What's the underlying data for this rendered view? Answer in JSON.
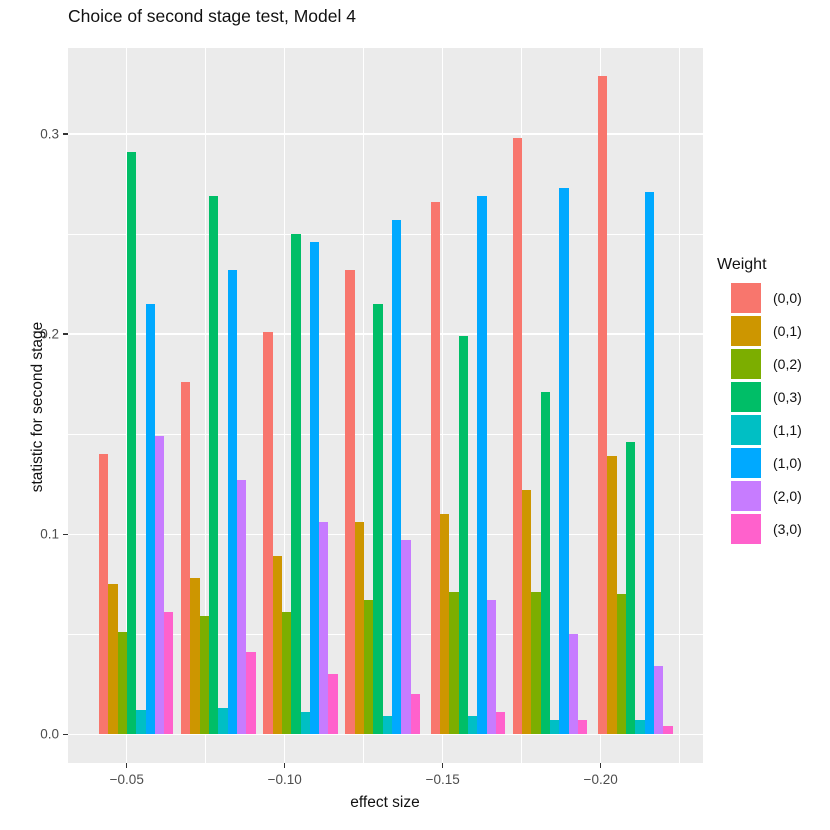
{
  "title": "Choice of second stage test, Model 4",
  "chart_data": {
    "type": "bar",
    "title": "Choice of second stage test, Model 4",
    "xlabel": "effect size",
    "ylabel": "statistic for second stage",
    "legend_title": "Weight",
    "legend_position": "right",
    "grid": "major-and-minor-white-on-gray",
    "panel_bg": "#EBEBEB",
    "grid_color": "#FFFFFF",
    "tick_label_color": "#4D4D4D",
    "xlim": [
      -0.0314,
      -0.2324
    ],
    "ylim": [
      -0.0143,
      0.343
    ],
    "x_ticks": [
      -0.05,
      -0.1,
      -0.15,
      -0.2
    ],
    "x_tick_labels": [
      "−0.05",
      "−0.10",
      "−0.15",
      "−0.20"
    ],
    "x_minor": [
      -0.075,
      -0.125,
      -0.175,
      -0.225
    ],
    "y_ticks": [
      0.0,
      0.1,
      0.2,
      0.3
    ],
    "y_tick_labels": [
      "0.0",
      "0.1",
      "0.2",
      "0.3"
    ],
    "y_minor": [
      0.05,
      0.15,
      0.25
    ],
    "x": [
      -0.053,
      -0.079,
      -0.105,
      -0.131,
      -0.158,
      -0.184,
      -0.211
    ],
    "series": [
      {
        "name": "(0,0)",
        "color": "#F8766D",
        "values": [
          0.14,
          0.176,
          0.201,
          0.232,
          0.266,
          0.298,
          0.329
        ]
      },
      {
        "name": "(0,1)",
        "color": "#CD9600",
        "values": [
          0.075,
          0.078,
          0.089,
          0.106,
          0.11,
          0.122,
          0.139
        ]
      },
      {
        "name": "(0,2)",
        "color": "#7CAE00",
        "values": [
          0.051,
          0.059,
          0.061,
          0.067,
          0.071,
          0.071,
          0.07
        ]
      },
      {
        "name": "(0,3)",
        "color": "#00BE67",
        "values": [
          0.291,
          0.269,
          0.25,
          0.215,
          0.199,
          0.171,
          0.146
        ]
      },
      {
        "name": "(1,1)",
        "color": "#00BFC4",
        "values": [
          0.012,
          0.013,
          0.011,
          0.009,
          0.009,
          0.007,
          0.007
        ]
      },
      {
        "name": "(1,0)",
        "color": "#00A9FF",
        "values": [
          0.215,
          0.232,
          0.246,
          0.257,
          0.269,
          0.273,
          0.271
        ]
      },
      {
        "name": "(2,0)",
        "color": "#C77CFF",
        "values": [
          0.149,
          0.127,
          0.106,
          0.097,
          0.067,
          0.05,
          0.034
        ]
      },
      {
        "name": "(3,0)",
        "color": "#FF61CC",
        "values": [
          0.061,
          0.041,
          0.03,
          0.02,
          0.011,
          0.007,
          0.004
        ]
      }
    ]
  }
}
